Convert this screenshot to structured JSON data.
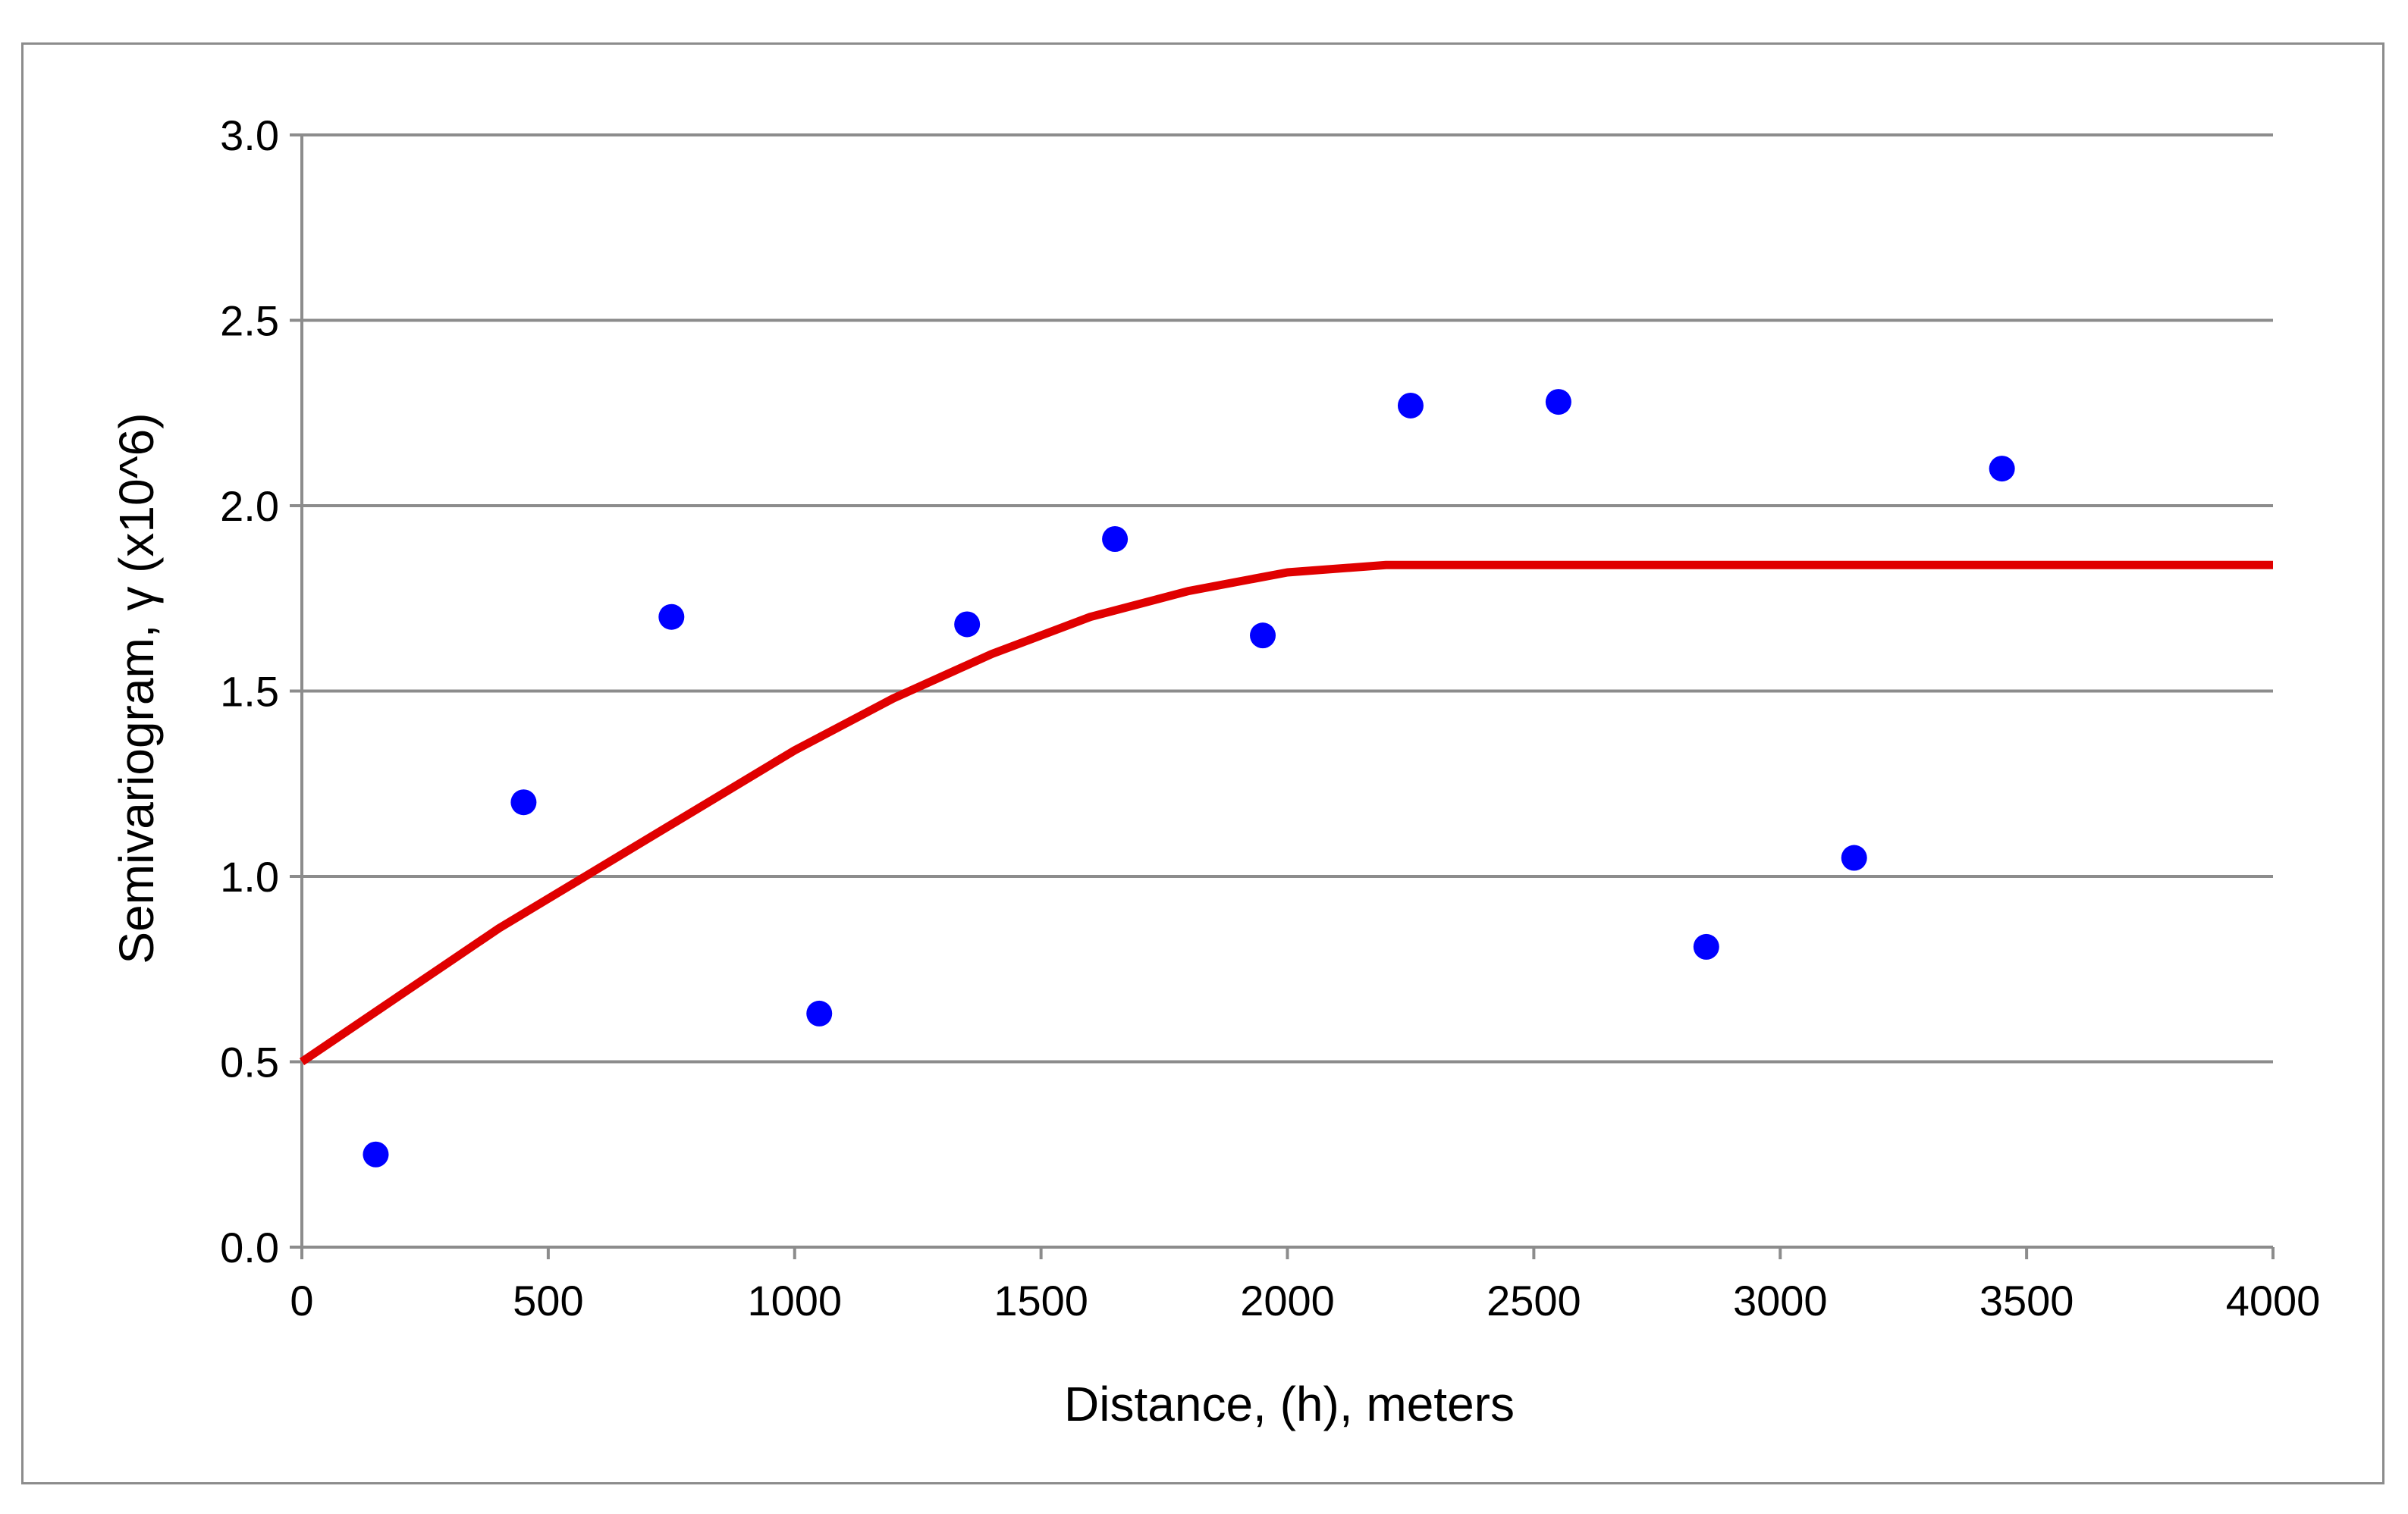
{
  "chart_data": {
    "type": "scatter",
    "title": "",
    "xlabel": "Distance, (h), meters",
    "ylabel": "Semivariogram, γ (x10^6)",
    "xlim": [
      0,
      4000
    ],
    "ylim": [
      0,
      3.0
    ],
    "x_ticks": [
      0,
      500,
      1000,
      1500,
      2000,
      2500,
      3000,
      3500,
      4000
    ],
    "x_tick_labels": [
      "0",
      "500",
      "1000",
      "1500",
      "2000",
      "2500",
      "3000",
      "3500",
      "4000"
    ],
    "y_ticks": [
      0,
      0.5,
      1.0,
      1.5,
      2.0,
      2.5,
      3.0
    ],
    "y_tick_labels": [
      "0.0",
      "0.5",
      "1.0",
      "1.5",
      "2.0",
      "2.5",
      "3.0"
    ],
    "grid": "horizontal",
    "legend": "none",
    "series": [
      {
        "kind": "scatter",
        "color": "#0000ff",
        "x": [
          150,
          450,
          750,
          1050,
          1350,
          1650,
          1950,
          2250,
          2550,
          2850,
          3150,
          3450
        ],
        "y": [
          0.25,
          1.2,
          1.7,
          0.63,
          1.68,
          1.91,
          1.65,
          2.27,
          2.28,
          0.81,
          1.05,
          2.1
        ]
      },
      {
        "kind": "line",
        "color": "#e00000",
        "x": [
          0,
          200,
          400,
          600,
          800,
          1000,
          1200,
          1400,
          1600,
          1800,
          2000,
          2200,
          4000
        ],
        "y": [
          0.5,
          0.68,
          0.86,
          1.02,
          1.18,
          1.34,
          1.48,
          1.6,
          1.7,
          1.77,
          1.82,
          1.84,
          1.84
        ]
      }
    ]
  }
}
